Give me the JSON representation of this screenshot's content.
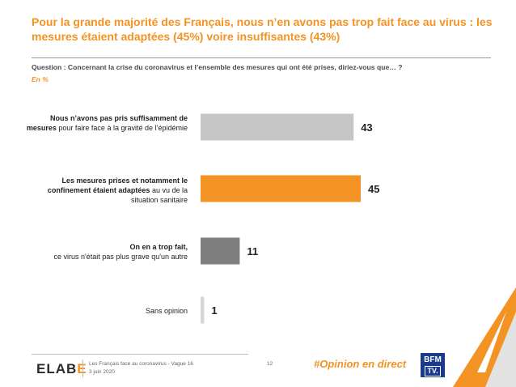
{
  "header": {
    "title": "Pour la grande majorité des Français, nous n’en avons pas trop fait face au virus : les mesures étaient adaptées (45%) voire insuffisantes (43%)",
    "question": "Question : Concernant la crise du coronavirus et l’ensemble des mesures qui ont été prises, diriez-vous que… ?",
    "unit": "En %"
  },
  "labels": [
    {
      "bold": "Nous n’avons pas pris suffisamment de mesures",
      "rest": " pour faire face à la gravité de l’épidémie"
    },
    {
      "bold": "Les mesures prises et notamment le confinement étaient adaptées",
      "rest": " au vu de la situation sanitaire"
    },
    {
      "bold": "On en a trop fait,",
      "rest": "ce virus n'était pas plus grave qu'un autre"
    },
    {
      "bold": "",
      "rest": "Sans opinion"
    }
  ],
  "chart_data": {
    "type": "bar",
    "orientation": "horizontal",
    "categories": [
      "Nous n’avons pas pris suffisamment de mesures pour faire face à la gravité de l’épidémie",
      "Les mesures prises et notamment le confinement étaient adaptées au vu de la situation sanitaire",
      "On en a trop fait, ce virus n'était pas plus grave qu'un autre",
      "Sans opinion"
    ],
    "values": [
      43,
      45,
      11,
      1
    ],
    "colors": [
      "#c6c6c6",
      "#f39323",
      "#7f7f7f",
      "#d6d6d6"
    ],
    "xlim": [
      0,
      100
    ],
    "unit": "%"
  },
  "footer": {
    "logo_left": "ELAB",
    "logo_right": "E",
    "line1": "Les Français face au coronavirus - Vague 16",
    "line2": "3 juin 2020",
    "page": "12",
    "hashtag": "#Opinion en direct",
    "bfm_line1": "BFM",
    "bfm_line2": "TV."
  }
}
